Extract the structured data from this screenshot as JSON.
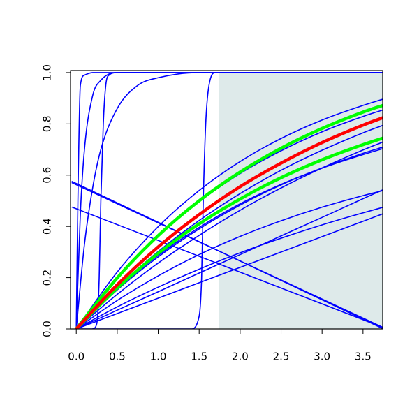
{
  "chart_data": {
    "type": "line",
    "xlim": [
      -0.07,
      3.74
    ],
    "ylim": [
      0,
      1.008
    ],
    "xticks": [
      {
        "value": 0,
        "label": "0.0"
      },
      {
        "value": 0.5,
        "label": "0.5"
      },
      {
        "value": 1,
        "label": "1.0"
      },
      {
        "value": 1.5,
        "label": "1.5"
      },
      {
        "value": 2,
        "label": "2.0"
      },
      {
        "value": 2.5,
        "label": "2.5"
      },
      {
        "value": 3,
        "label": "3.0"
      },
      {
        "value": 3.5,
        "label": "3.5"
      }
    ],
    "yticks": [
      {
        "value": 0,
        "label": "0.0"
      },
      {
        "value": 0.2,
        "label": "0.2"
      },
      {
        "value": 0.4,
        "label": "0.4"
      },
      {
        "value": 0.6,
        "label": "0.6"
      },
      {
        "value": 0.8,
        "label": "0.8"
      },
      {
        "value": 1,
        "label": "1.0"
      }
    ],
    "shaded_region": {
      "from": 1.74,
      "to": 3.74,
      "y": [
        0,
        1
      ],
      "color": "#deeaea"
    },
    "series": [
      {
        "color": "#0000ff",
        "highlight": false,
        "x": [
          0,
          0.5,
          1,
          1.5,
          2,
          2.5,
          3,
          3.5,
          3.75
        ],
        "values": [
          0,
          0.222,
          0.399,
          0.54,
          0.653,
          0.743,
          0.815,
          0.872,
          0.897
        ]
      },
      {
        "color": "#0000ff",
        "highlight": false,
        "x": [
          0,
          0.5,
          1,
          1.5,
          2,
          2.5,
          3,
          3.5,
          3.75
        ],
        "values": [
          0,
          0.199,
          0.363,
          0.496,
          0.606,
          0.695,
          0.769,
          0.829,
          0.855
        ]
      },
      {
        "color": "#0000ff",
        "highlight": false,
        "x": [
          0,
          0.5,
          1,
          1.5,
          2,
          2.5,
          3,
          3.5,
          3.75
        ],
        "values": [
          0,
          0.162,
          0.302,
          0.423,
          0.528,
          0.619,
          0.697,
          0.765,
          0.795
        ]
      },
      {
        "color": "#0000ff",
        "highlight": false,
        "x": [
          0,
          0.5,
          1,
          1.5,
          2,
          2.5,
          3,
          3.5,
          3.75
        ],
        "values": [
          0,
          0.135,
          0.257,
          0.365,
          0.463,
          0.55,
          0.628,
          0.698,
          0.73
        ]
      },
      {
        "color": "#0000ff",
        "highlight": false,
        "x": [
          0,
          0.5,
          1,
          1.5,
          2,
          2.5,
          3,
          3.5,
          3.75
        ],
        "values": [
          0,
          0.152,
          0.281,
          0.39,
          0.483,
          0.562,
          0.628,
          0.685,
          0.71
        ]
      },
      {
        "color": "#0000ff",
        "highlight": false,
        "x": [
          0,
          0.5,
          1,
          1.5,
          2,
          2.5,
          3,
          3.5,
          3.75
        ],
        "values": [
          0,
          0.156,
          0.287,
          0.396,
          0.488,
          0.564,
          0.627,
          0.68,
          0.704
        ]
      },
      {
        "color": "#0000ff",
        "highlight": false,
        "x": [
          0,
          0.5,
          1,
          1.5,
          2,
          2.5,
          3,
          3.5,
          3.75
        ],
        "values": [
          0,
          0.111,
          0.207,
          0.29,
          0.361,
          0.422,
          0.475,
          0.52,
          0.54
        ]
      },
      {
        "color": "#0000ff",
        "highlight": false,
        "x": [
          0,
          0.5,
          1,
          1.5,
          2,
          2.5,
          3,
          3.5,
          3.75
        ],
        "values": [
          0,
          0.073,
          0.145,
          0.218,
          0.29,
          0.363,
          0.435,
          0.508,
          0.544
        ]
      },
      {
        "color": "#0000ff",
        "highlight": false,
        "x": [
          0,
          0.5,
          1,
          1.5,
          2,
          2.5,
          3,
          3.5,
          3.75
        ],
        "values": [
          0,
          0.086,
          0.163,
          0.233,
          0.297,
          0.354,
          0.406,
          0.453,
          0.475
        ]
      },
      {
        "color": "#0000ff",
        "highlight": false,
        "x": [
          0,
          0.5,
          1,
          1.5,
          2,
          2.5,
          3,
          3.5,
          3.75
        ],
        "values": [
          0,
          0.06,
          0.12,
          0.18,
          0.24,
          0.3,
          0.36,
          0.42,
          0.45
        ]
      },
      {
        "color": "#0000ff",
        "highlight": false,
        "x": [
          -0.05,
          3.75
        ],
        "values": [
          0.575,
          0
        ]
      },
      {
        "color": "#0000ff",
        "highlight": false,
        "x": [
          -0.05,
          3.75
        ],
        "values": [
          0.57,
          0.005
        ]
      },
      {
        "color": "#0000ff",
        "highlight": false,
        "x": [
          -0.05,
          3.75
        ],
        "values": [
          0.475,
          0.005
        ]
      },
      {
        "color": "#0000ff",
        "highlight": false,
        "x": [
          0,
          0.02,
          0.05,
          0.1,
          0.2,
          3.75
        ],
        "values": [
          0,
          0.5,
          0.95,
          0.99,
          1,
          1
        ]
      },
      {
        "color": "#0000ff",
        "highlight": false,
        "x": [
          0,
          0.05,
          0.1,
          0.2,
          0.3,
          0.5,
          3.75
        ],
        "values": [
          0,
          0.45,
          0.7,
          0.91,
          0.97,
          1,
          1
        ]
      },
      {
        "color": "#0000ff",
        "highlight": false,
        "x": [
          0,
          0.1,
          0.2,
          0.3,
          0.5,
          0.75,
          1,
          1.5,
          3.75
        ],
        "values": [
          0,
          0.33,
          0.55,
          0.7,
          0.86,
          0.95,
          0.98,
          1,
          1
        ]
      },
      {
        "color": "#0000ff",
        "highlight": false,
        "x": [
          0.2,
          0.25,
          0.28,
          0.3,
          0.33,
          0.36,
          0.4,
          0.5,
          3.75
        ],
        "values": [
          0,
          0.02,
          0.2,
          0.5,
          0.8,
          0.95,
          0.99,
          1,
          1
        ]
      },
      {
        "color": "#0000ff",
        "highlight": false,
        "x": [
          0,
          1.4,
          1.5,
          1.53,
          1.55,
          1.58,
          1.62,
          1.7,
          3.75
        ],
        "values": [
          0,
          0,
          0.05,
          0.2,
          0.5,
          0.8,
          0.95,
          1,
          1
        ]
      },
      {
        "color": "#00ff00",
        "highlight": true,
        "x": [
          0,
          0.5,
          1,
          1.5,
          2,
          2.5,
          3,
          3.5,
          3.75
        ],
        "values": [
          0,
          0.199,
          0.364,
          0.5,
          0.612,
          0.705,
          0.782,
          0.846,
          0.873
        ]
      },
      {
        "color": "#00ff00",
        "highlight": true,
        "x": [
          0,
          0.5,
          1,
          1.5,
          2,
          2.5,
          3,
          3.5,
          3.75
        ],
        "values": [
          0,
          0.159,
          0.295,
          0.41,
          0.507,
          0.59,
          0.66,
          0.719,
          0.745
        ]
      },
      {
        "color": "#ff0000",
        "highlight": true,
        "x": [
          0,
          0.5,
          1,
          1.5,
          2,
          2.5,
          3,
          3.5,
          3.75
        ],
        "values": [
          0,
          0.172,
          0.32,
          0.446,
          0.555,
          0.647,
          0.727,
          0.795,
          0.825
        ]
      }
    ]
  }
}
